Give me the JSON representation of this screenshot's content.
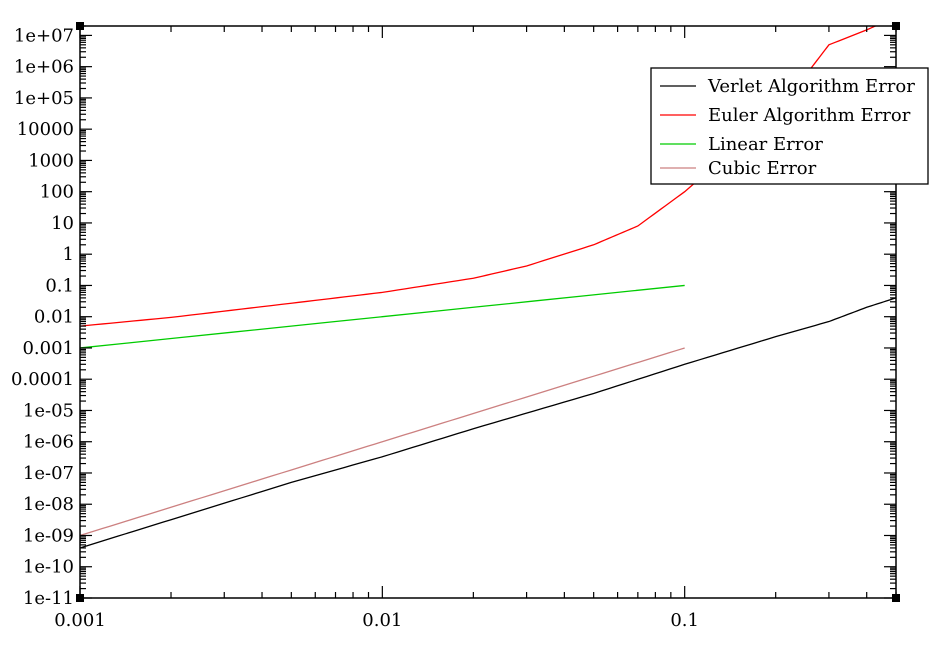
{
  "chart_data": {
    "type": "line",
    "title": "",
    "xlabel": "",
    "ylabel": "",
    "x_scale": "log",
    "y_scale": "log",
    "xlim": [
      0.001,
      0.5
    ],
    "ylim": [
      1e-11,
      20000000.0
    ],
    "grid": false,
    "legend_position": "top-right",
    "x_ticks": [
      {
        "value": 0.001,
        "label": "0.001"
      },
      {
        "value": 0.01,
        "label": "0.01"
      },
      {
        "value": 0.1,
        "label": "0.1"
      }
    ],
    "y_ticks": [
      {
        "value": 10000000.0,
        "label": "1e+07"
      },
      {
        "value": 1000000.0,
        "label": "1e+06"
      },
      {
        "value": 100000.0,
        "label": "1e+05"
      },
      {
        "value": 10000.0,
        "label": "10000"
      },
      {
        "value": 1000.0,
        "label": "1000"
      },
      {
        "value": 100.0,
        "label": "100"
      },
      {
        "value": 10.0,
        "label": "10"
      },
      {
        "value": 1,
        "label": "1"
      },
      {
        "value": 0.1,
        "label": "0.1"
      },
      {
        "value": 0.01,
        "label": "0.01"
      },
      {
        "value": 0.001,
        "label": "0.001"
      },
      {
        "value": 0.0001,
        "label": "0.0001"
      },
      {
        "value": 1e-05,
        "label": "1e-05"
      },
      {
        "value": 1e-06,
        "label": "1e-06"
      },
      {
        "value": 1e-07,
        "label": "1e-07"
      },
      {
        "value": 1e-08,
        "label": "1e-08"
      },
      {
        "value": 1e-09,
        "label": "1e-09"
      },
      {
        "value": 1e-10,
        "label": "1e-10"
      },
      {
        "value": 1e-11,
        "label": "1e-11"
      }
    ],
    "series": [
      {
        "name": "Verlet Algorithm Error",
        "color": "#000000",
        "x": [
          0.001,
          0.002,
          0.005,
          0.01,
          0.02,
          0.05,
          0.1,
          0.2,
          0.3,
          0.4,
          0.5
        ],
        "y": [
          4e-10,
          3.2e-09,
          5e-08,
          3.3e-07,
          2.6e-06,
          3.5e-05,
          0.0003,
          0.0023,
          0.007,
          0.02,
          0.04
        ]
      },
      {
        "name": "Euler Algorithm Error",
        "color": "#ff0000",
        "x": [
          0.001,
          0.002,
          0.005,
          0.01,
          0.02,
          0.03,
          0.05,
          0.07,
          0.1,
          0.15,
          0.2,
          0.25,
          0.3,
          0.4,
          0.45,
          0.5
        ],
        "y": [
          0.005,
          0.0095,
          0.027,
          0.06,
          0.17,
          0.42,
          2.0,
          8.0,
          100,
          3000,
          50000.0,
          500000.0,
          5000000.0,
          15000000.0,
          25000000.0,
          25000000.0
        ]
      },
      {
        "name": "Linear Error",
        "color": "#00cc00",
        "x": [
          0.001,
          0.1
        ],
        "y": [
          0.001,
          0.1
        ]
      },
      {
        "name": "Cubic Error",
        "color": "#cc8080",
        "x": [
          0.001,
          0.002,
          0.005,
          0.01,
          0.02,
          0.05,
          0.1
        ],
        "y": [
          1e-09,
          8e-09,
          1.25e-07,
          1e-06,
          8e-06,
          0.000125,
          0.001
        ]
      }
    ]
  }
}
